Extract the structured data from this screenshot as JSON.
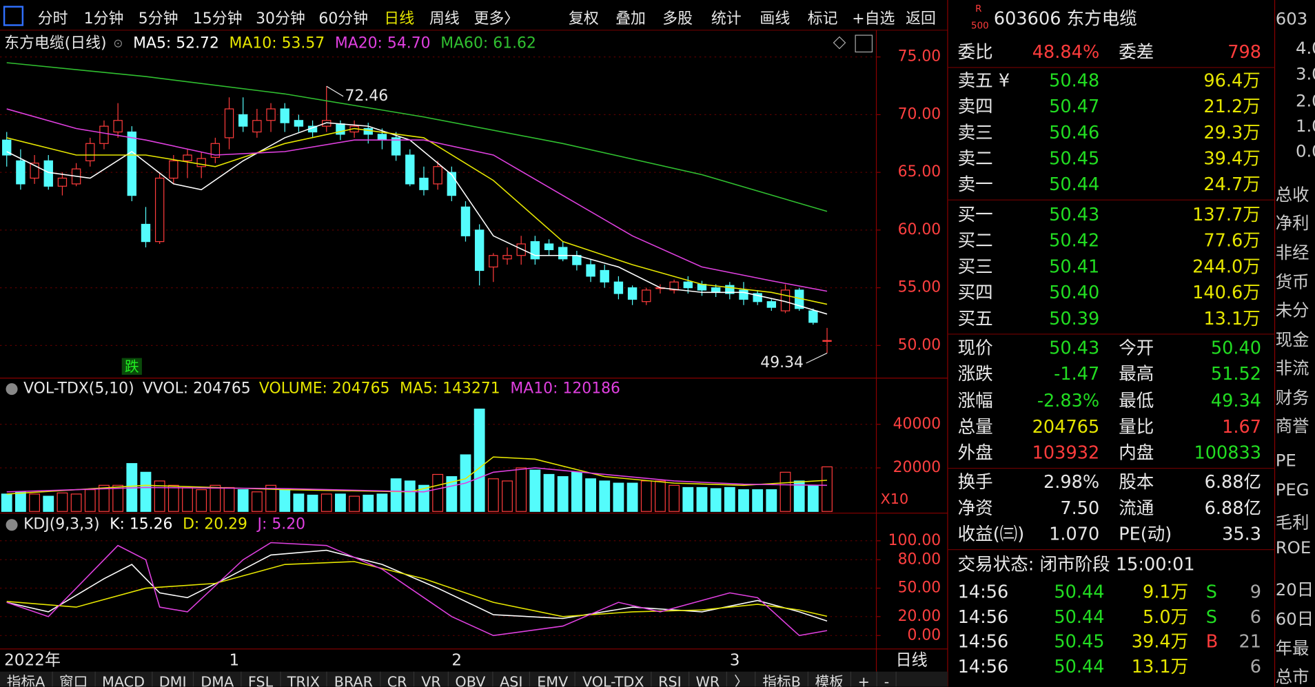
{
  "toolbar": {
    "periods": [
      "分时",
      "1分钟",
      "5分钟",
      "15分钟",
      "30分钟",
      "60分钟",
      "日线",
      "周线",
      "更多〉"
    ],
    "tools": [
      "复权",
      "叠加",
      "多股",
      "统计",
      "画线",
      "标记",
      "+自选",
      "返回"
    ]
  },
  "chart_data": [
    {
      "type": "candlestick",
      "title": "东方电缆(日线)",
      "categories": [
        "2022年",
        null,
        null,
        null,
        null,
        null,
        null,
        null,
        null,
        null,
        null,
        null,
        null,
        null,
        null,
        null,
        "1",
        null,
        null,
        null,
        null,
        null,
        null,
        null,
        null,
        null,
        null,
        null,
        null,
        null,
        null,
        null,
        "2",
        null,
        null,
        null,
        null,
        null,
        null,
        null,
        null,
        null,
        null,
        null,
        null,
        null,
        null,
        null,
        null,
        null,
        null,
        null,
        "3",
        null,
        null,
        null,
        null,
        null,
        null,
        null
      ],
      "signals": [
        null,
        null,
        null,
        null,
        null,
        null,
        null,
        null,
        null,
        "跌",
        null,
        null,
        null,
        null,
        null,
        null,
        null,
        null,
        null,
        null,
        null,
        null,
        null,
        null,
        null,
        null,
        null,
        null,
        null,
        null,
        null,
        null,
        null,
        null,
        null,
        null,
        null,
        null,
        null,
        null,
        null,
        null,
        null,
        null,
        null,
        null,
        null,
        null,
        null,
        null,
        null,
        null,
        null,
        null,
        null,
        null,
        null,
        null,
        null,
        null
      ],
      "open": [
        67.8,
        66,
        64.5,
        66,
        63.8,
        64,
        66,
        67.5,
        68.5,
        68.5,
        60.5,
        59,
        64.5,
        66,
        65.5,
        66.3,
        68,
        70,
        68.5,
        69.5,
        70.5,
        69.5,
        69,
        69,
        69.2,
        68.5,
        68.8,
        68.3,
        68,
        66.5,
        64.5,
        64,
        65,
        62,
        60,
        56.8,
        57.5,
        57.8,
        59,
        58.8,
        58.5,
        57.8,
        57,
        56.5,
        55.5,
        55,
        53.8,
        55,
        54.8,
        55.5,
        55.3,
        55,
        55.2,
        54.8,
        54.5,
        53.8,
        53,
        54.8,
        53,
        50.4
      ],
      "close": [
        66.5,
        64,
        65.8,
        63.8,
        64.5,
        65.3,
        67.5,
        69,
        69.5,
        63,
        59,
        64.5,
        66,
        66.5,
        66.2,
        67.5,
        70.5,
        69,
        69.5,
        70.5,
        69.3,
        69,
        68.5,
        69.5,
        68.3,
        69,
        68.3,
        67.8,
        66.5,
        64,
        63.5,
        65.5,
        63,
        59.5,
        56.5,
        57.8,
        57.8,
        58.8,
        57.5,
        58.3,
        57.5,
        57,
        56,
        55.5,
        54.5,
        54,
        54.8,
        55,
        55.5,
        55,
        54.8,
        54.6,
        54.5,
        54,
        53.8,
        53.3,
        54.8,
        53.2,
        52,
        50.43
      ],
      "low": [
        65.5,
        63.5,
        64,
        63.5,
        63,
        63.8,
        65.5,
        67,
        68,
        62.5,
        58.5,
        58.8,
        64,
        64.5,
        64.5,
        65.8,
        67,
        68.5,
        68,
        68.5,
        68.5,
        68.5,
        68,
        68.5,
        67.8,
        68,
        67.5,
        67,
        66,
        63.8,
        63,
        63.5,
        62.5,
        59,
        55.2,
        55.5,
        57,
        57,
        57,
        57.8,
        57.3,
        56.5,
        55.5,
        55,
        54,
        53.5,
        53.5,
        54.5,
        54.5,
        54.5,
        54.3,
        54.2,
        54,
        53.5,
        53.5,
        53,
        52.8,
        53,
        51.8,
        49.34
      ],
      "high": [
        68.5,
        67,
        66.5,
        66.5,
        65,
        65.8,
        68,
        69.5,
        71,
        69,
        62,
        65,
        66.5,
        67,
        66.8,
        68,
        71.5,
        71.5,
        70.5,
        71,
        71,
        70,
        69.5,
        72.46,
        69.5,
        69.5,
        69.3,
        68.8,
        68.5,
        67,
        65.5,
        66,
        65.5,
        62.5,
        60.5,
        58,
        58.5,
        59.5,
        59.5,
        59.2,
        59,
        58.2,
        57.5,
        57,
        56,
        55.2,
        55,
        55.3,
        55.7,
        56,
        55.6,
        55.3,
        55.5,
        55.5,
        54.8,
        54,
        55.3,
        55,
        53.2,
        51.52
      ],
      "lines": [
        {
          "name": "MA5: 52.72",
          "color": "#ffffff",
          "x": [
            0,
            3,
            6,
            9,
            12,
            14,
            17,
            20,
            23,
            26,
            29,
            32,
            35,
            38,
            41,
            44,
            47,
            50,
            53,
            56,
            59
          ],
          "values": [
            66.8,
            65,
            64.5,
            66.8,
            64,
            63.5,
            66,
            68,
            69.3,
            69,
            67.8,
            64.8,
            59.5,
            57.8,
            57.8,
            56.8,
            55,
            54.6,
            54.6,
            53.8,
            52.72
          ]
        },
        {
          "name": "MA10: 53.57",
          "color": "#e6e600",
          "x": [
            0,
            5,
            10,
            15,
            20,
            25,
            30,
            35,
            40,
            45,
            50,
            55,
            59
          ],
          "values": [
            68,
            66.5,
            66.5,
            65.5,
            67.5,
            68.8,
            68,
            64.3,
            59,
            57,
            55.3,
            54.6,
            53.57
          ]
        },
        {
          "name": "MA20: 54.70",
          "color": "#e040e0",
          "x": [
            0,
            5,
            10,
            15,
            20,
            25,
            30,
            35,
            40,
            45,
            50,
            55,
            59
          ],
          "values": [
            70.5,
            68.8,
            67.8,
            66.5,
            66.8,
            67.8,
            67.8,
            66.5,
            63,
            59.5,
            56.8,
            55.6,
            54.7
          ]
        },
        {
          "name": "MA60: 61.62",
          "color": "#30c030",
          "x": [
            0,
            10,
            20,
            30,
            40,
            50,
            59
          ],
          "values": [
            74.5,
            73.3,
            71.8,
            69.8,
            67.5,
            64.8,
            61.62
          ]
        }
      ],
      "ylim": [
        47.24,
        77.03
      ],
      "yticks": [
        {
          "value": 75,
          "label": "75.00"
        },
        {
          "value": 70,
          "label": "70.00"
        },
        {
          "value": 65,
          "label": "65.00"
        },
        {
          "value": 60,
          "label": "60.00"
        },
        {
          "value": 55,
          "label": "55.00"
        },
        {
          "value": 50,
          "label": "50.00"
        }
      ],
      "grid": true,
      "up_color": "#ff3c3c",
      "down_color": "#54fcfc"
    },
    {
      "type": "volume",
      "legend": [
        "VOL-TDX(5,10)",
        "VVOL: 204765",
        "VOLUME: 204765"
      ],
      "unit": "X10",
      "values": [
        8000,
        9000,
        8000,
        7000,
        8500,
        8000,
        10000,
        12000,
        12000,
        22000,
        18000,
        14000,
        12000,
        11000,
        10000,
        12000,
        11000,
        10000,
        9000,
        12000,
        10000,
        8000,
        7500,
        8000,
        8000,
        7000,
        7500,
        8000,
        15000,
        14000,
        12000,
        17000,
        16000,
        26000,
        47000,
        15000,
        14000,
        20000,
        19000,
        17000,
        16000,
        18000,
        15000,
        14000,
        13000,
        13000,
        14000,
        14000,
        12000,
        11000,
        11000,
        10500,
        11000,
        10000,
        10000,
        10000,
        18000,
        14000,
        12000,
        20476.5
      ],
      "lines": [
        {
          "name": "MA5: 143271",
          "color": "#e6e600",
          "x": [
            0,
            10,
            20,
            29,
            33,
            35,
            38,
            43,
            48,
            53,
            59
          ],
          "values": [
            8000,
            12000,
            10000,
            9000,
            15000,
            25000,
            24000,
            16000,
            13000,
            12000,
            14327.1
          ]
        },
        {
          "name": "MA10: 120186",
          "color": "#e040e0",
          "x": [
            0,
            10,
            20,
            30,
            33,
            35,
            38,
            43,
            48,
            53,
            59
          ],
          "values": [
            9000,
            11000,
            10500,
            9000,
            13000,
            18000,
            20000,
            17000,
            14000,
            12500,
            12018.6
          ]
        }
      ],
      "ylim": [
        0,
        60800
      ],
      "yticks": [
        40000,
        20000
      ],
      "grid": true
    },
    {
      "type": "line",
      "title": "KDJ(9,3,3)",
      "lines": [
        {
          "name": "K: 15.26",
          "color": "#ffffff",
          "x": [
            0,
            3,
            7,
            9,
            11,
            13,
            16,
            19,
            23,
            27,
            31,
            35,
            40,
            45,
            50,
            54,
            57,
            59
          ],
          "values": [
            35,
            25,
            60,
            75,
            45,
            40,
            62,
            85,
            90,
            75,
            50,
            22,
            18,
            30,
            25,
            37,
            25,
            15.26
          ]
        },
        {
          "name": "D: 20.29",
          "color": "#e6e600",
          "x": [
            0,
            5,
            10,
            15,
            20,
            25,
            30,
            35,
            40,
            45,
            50,
            54,
            57,
            59
          ],
          "values": [
            36,
            30,
            50,
            55,
            75,
            78,
            60,
            35,
            20,
            25,
            27,
            33,
            27,
            20.29
          ]
        },
        {
          "name": "J: 5.20",
          "color": "#e040e0",
          "x": [
            0,
            3,
            8,
            10,
            11,
            13,
            17,
            19,
            23,
            27,
            32,
            35,
            40,
            44,
            47,
            52,
            54,
            57,
            59
          ],
          "values": [
            35,
            20,
            95,
            80,
            30,
            25,
            80,
            98,
            95,
            70,
            20,
            0,
            10,
            35,
            25,
            45,
            40,
            0,
            5.2
          ]
        }
      ],
      "ylim": [
        -13.3,
        127.4
      ],
      "yticks": [
        {
          "value": 100,
          "label": "100.00"
        },
        {
          "value": 80,
          "label": "80.00"
        },
        {
          "value": 50,
          "label": "50.00"
        },
        {
          "value": 20,
          "label": "20.00"
        },
        {
          "value": 0,
          "label": "0.00"
        }
      ],
      "grid": true
    }
  ],
  "period_label": "日线",
  "quote": {
    "badge": [
      "R",
      "500"
    ],
    "title": "603606 东方电缆",
    "ratio": [
      [
        "委比",
        "48.84%",
        "委差",
        "798"
      ]
    ],
    "asks": [
      [
        "卖五 ¥",
        "50.48",
        "96.4万"
      ],
      [
        "卖四",
        "50.47",
        "21.2万"
      ],
      [
        "卖三",
        "50.46",
        "29.3万"
      ],
      [
        "卖二",
        "50.45",
        "39.4万"
      ],
      [
        "卖一",
        "50.44",
        "24.7万"
      ]
    ],
    "bids": [
      [
        "买一",
        "50.43",
        "137.7万"
      ],
      [
        "买二",
        "50.42",
        "77.6万"
      ],
      [
        "买三",
        "50.41",
        "244.0万"
      ],
      [
        "买四",
        "50.40",
        "140.6万"
      ],
      [
        "买五",
        "50.39",
        "13.1万"
      ]
    ],
    "stats": [
      [
        "现价",
        "50.43",
        "今开",
        "50.40"
      ],
      [
        "涨跌",
        "-1.47",
        "最高",
        "51.52"
      ],
      [
        "涨幅",
        "-2.83%",
        "最低",
        "49.34"
      ],
      [
        "总量",
        "204765",
        "量比",
        "1.67"
      ],
      [
        "外盘",
        "103932",
        "内盘",
        "100833"
      ]
    ],
    "fundamentals": [
      [
        "换手",
        "2.98%",
        "股本",
        "6.88亿"
      ],
      [
        "净资",
        "7.50",
        "流通",
        "6.88亿"
      ],
      [
        "收益(㈢)",
        "1.070",
        "PE(动)",
        "35.3"
      ]
    ],
    "status": "交易状态: 闭市阶段 15:00:01",
    "trades": [
      {
        "time": "14:56",
        "price": "50.44",
        "volume": "9.1万",
        "side": "S",
        "count": "9"
      },
      {
        "time": "14:56",
        "price": "50.44",
        "volume": "5.0万",
        "side": "S",
        "count": "6"
      },
      {
        "time": "14:56",
        "price": "50.45",
        "volume": "39.4万",
        "side": "B",
        "count": "21"
      },
      {
        "time": "14:56",
        "price": "50.44",
        "volume": "13.1万",
        "count": "6"
      }
    ]
  },
  "side": [
    "603",
    "4.0",
    "3.0",
    "2.0",
    "1.0",
    "0.0",
    "总收",
    "净利",
    "非经",
    "货币",
    "未分",
    "现金",
    "非流",
    "财务",
    "商誉",
    "PE",
    "PEG",
    "毛利",
    "ROE",
    "20日",
    "60日",
    "年最",
    "总市"
  ],
  "tabs": [
    "指标A",
    "窗口",
    "MACD",
    "DMI",
    "DMA",
    "FSL",
    "TRIX",
    "BRAR",
    "CR",
    "VR",
    "OBV",
    "ASI",
    "EMV",
    "VOL-TDX",
    "RSI",
    "WR",
    "〉",
    "指标B",
    "模板",
    "+",
    "-"
  ]
}
